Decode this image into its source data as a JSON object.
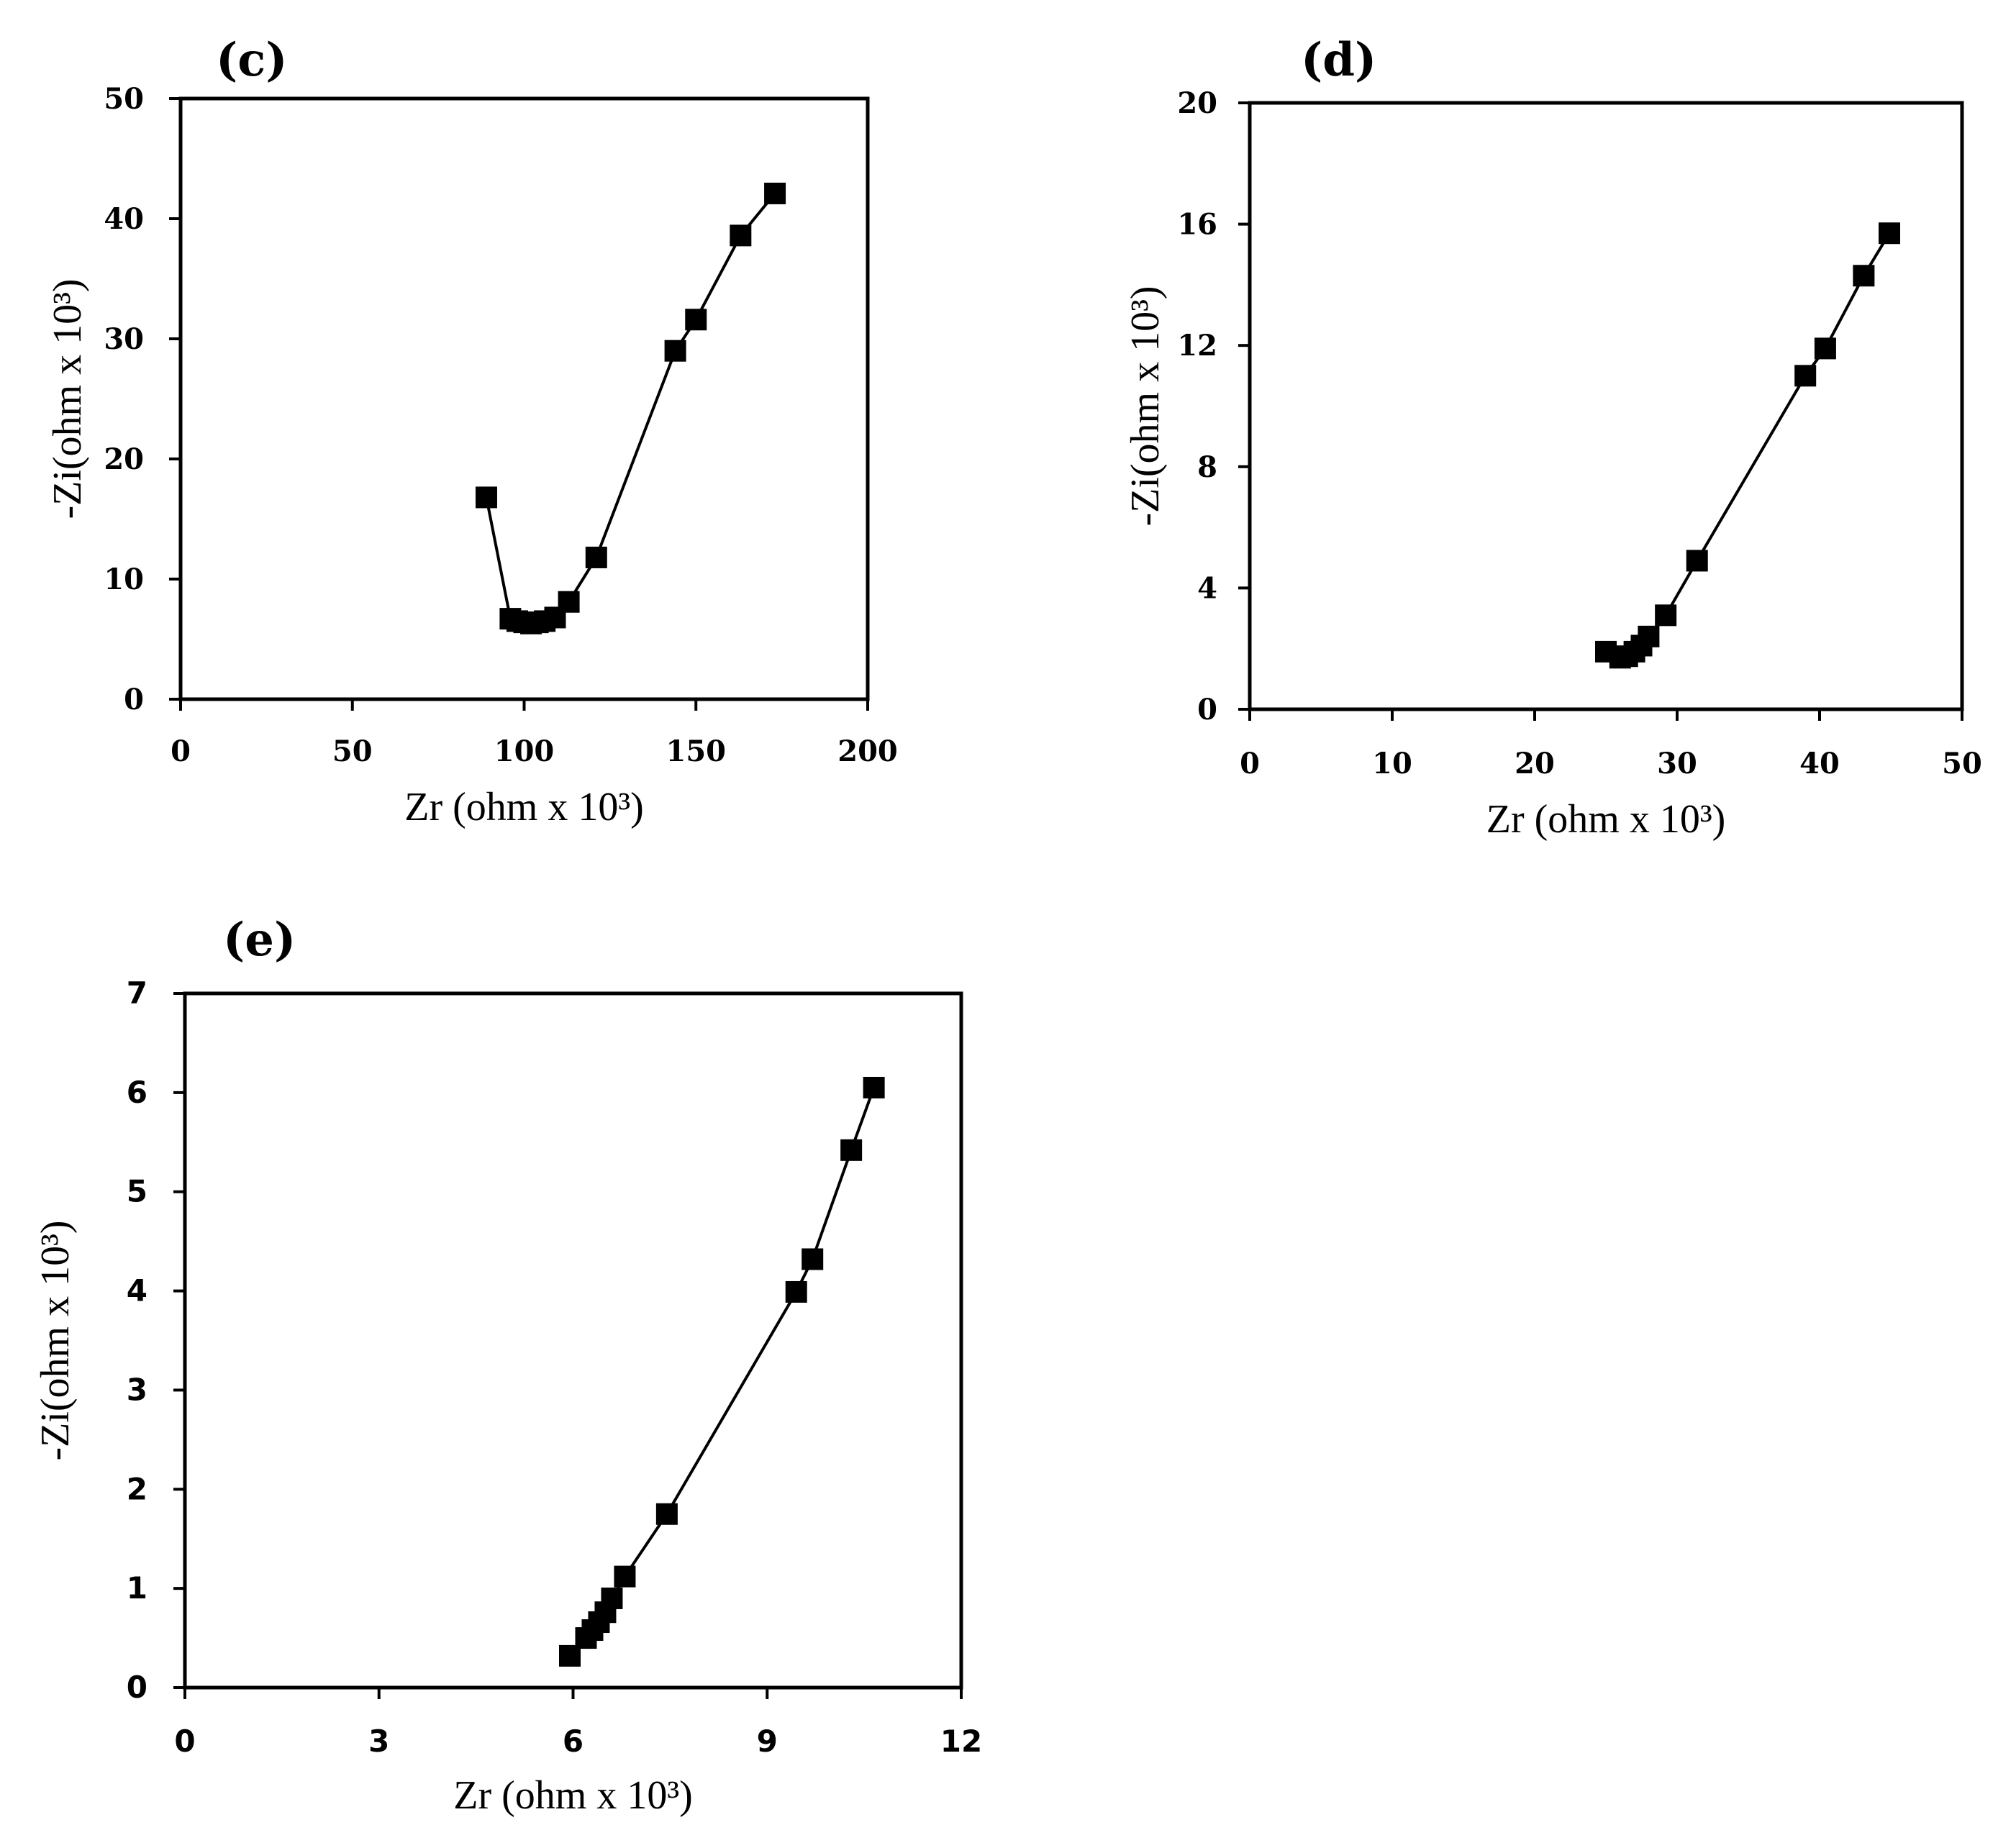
{
  "chart_data": [
    {
      "type": "scatter",
      "panel": "(c)",
      "xlabel": "Zr (ohm x 10³)",
      "ylabel": "-Zi(ohm x 10³)",
      "xlim": [
        0,
        200
      ],
      "ylim": [
        0,
        50
      ],
      "xticks": [
        "0",
        "50",
        "100",
        "150",
        "200"
      ],
      "yticks": [
        "0",
        "10",
        "20",
        "30",
        "40",
        "50"
      ],
      "grid": false,
      "x": [
        89,
        96,
        98,
        100,
        102,
        104,
        106,
        109,
        113,
        121,
        144,
        150,
        163,
        173
      ],
      "y": [
        16.8,
        6.7,
        6.5,
        6.4,
        6.3,
        6.4,
        6.5,
        6.8,
        8.1,
        11.8,
        29.0,
        31.6,
        38.6,
        42.1
      ]
    },
    {
      "type": "scatter",
      "panel": "(d)",
      "xlabel": "Zr (ohm x 10³)",
      "ylabel": "-Zi(ohm x 10³)",
      "xlim": [
        0,
        50
      ],
      "ylim": [
        0,
        20
      ],
      "xticks": [
        "0",
        "10",
        "20",
        "30",
        "40",
        "50"
      ],
      "yticks": [
        "0",
        "4",
        "8",
        "12",
        "16",
        "20"
      ],
      "grid": false,
      "x": [
        25.0,
        26.0,
        26.5,
        27.0,
        27.5,
        28.0,
        29.2,
        31.4,
        39.0,
        40.4,
        43.1,
        44.9
      ],
      "y": [
        1.9,
        1.7,
        1.75,
        1.9,
        2.1,
        2.4,
        3.1,
        4.9,
        11.0,
        11.9,
        14.3,
        15.7
      ]
    },
    {
      "type": "scatter",
      "panel": "(e)",
      "xlabel": "Zr (ohm x 10³)",
      "ylabel": "-Zi(ohm x 10³)",
      "xlim": [
        0,
        12
      ],
      "ylim": [
        0,
        7
      ],
      "xticks": [
        "0",
        "3",
        "6",
        "9",
        "12"
      ],
      "yticks": [
        "0",
        "1",
        "2",
        "3",
        "4",
        "5",
        "6",
        "7"
      ],
      "grid": false,
      "x": [
        5.95,
        6.2,
        6.3,
        6.4,
        6.5,
        6.6,
        6.8,
        7.45,
        9.45,
        9.7,
        10.3,
        10.65
      ],
      "y": [
        0.32,
        0.5,
        0.58,
        0.66,
        0.76,
        0.9,
        1.12,
        1.75,
        3.99,
        4.32,
        5.42,
        6.05
      ]
    }
  ]
}
